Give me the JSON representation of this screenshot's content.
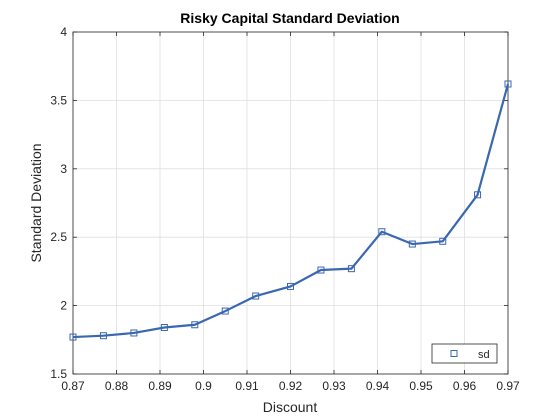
{
  "chart_data": {
    "type": "line",
    "title": "Risky Capital Standard Deviation",
    "xlabel": "Discount",
    "ylabel": "Standard Deviation",
    "xlim": [
      0.87,
      0.97
    ],
    "ylim": [
      1.5,
      4
    ],
    "xticks": [
      "0.87",
      "0.88",
      "0.89",
      "0.9",
      "0.91",
      "0.92",
      "0.93",
      "0.94",
      "0.95",
      "0.96",
      "0.97"
    ],
    "yticks": [
      "1.5",
      "2",
      "2.5",
      "3",
      "3.5",
      "4"
    ],
    "grid": true,
    "legend_position": "bottom-right",
    "line_color": "#3a68b0",
    "marker": "square",
    "series": [
      {
        "name": "sd",
        "x": [
          0.87,
          0.877,
          0.884,
          0.891,
          0.898,
          0.905,
          0.912,
          0.92,
          0.927,
          0.934,
          0.941,
          0.948,
          0.955,
          0.963,
          0.97
        ],
        "y": [
          1.77,
          1.78,
          1.8,
          1.84,
          1.86,
          1.96,
          2.07,
          2.14,
          2.26,
          2.27,
          2.54,
          2.45,
          2.47,
          2.81,
          3.62
        ]
      }
    ]
  }
}
